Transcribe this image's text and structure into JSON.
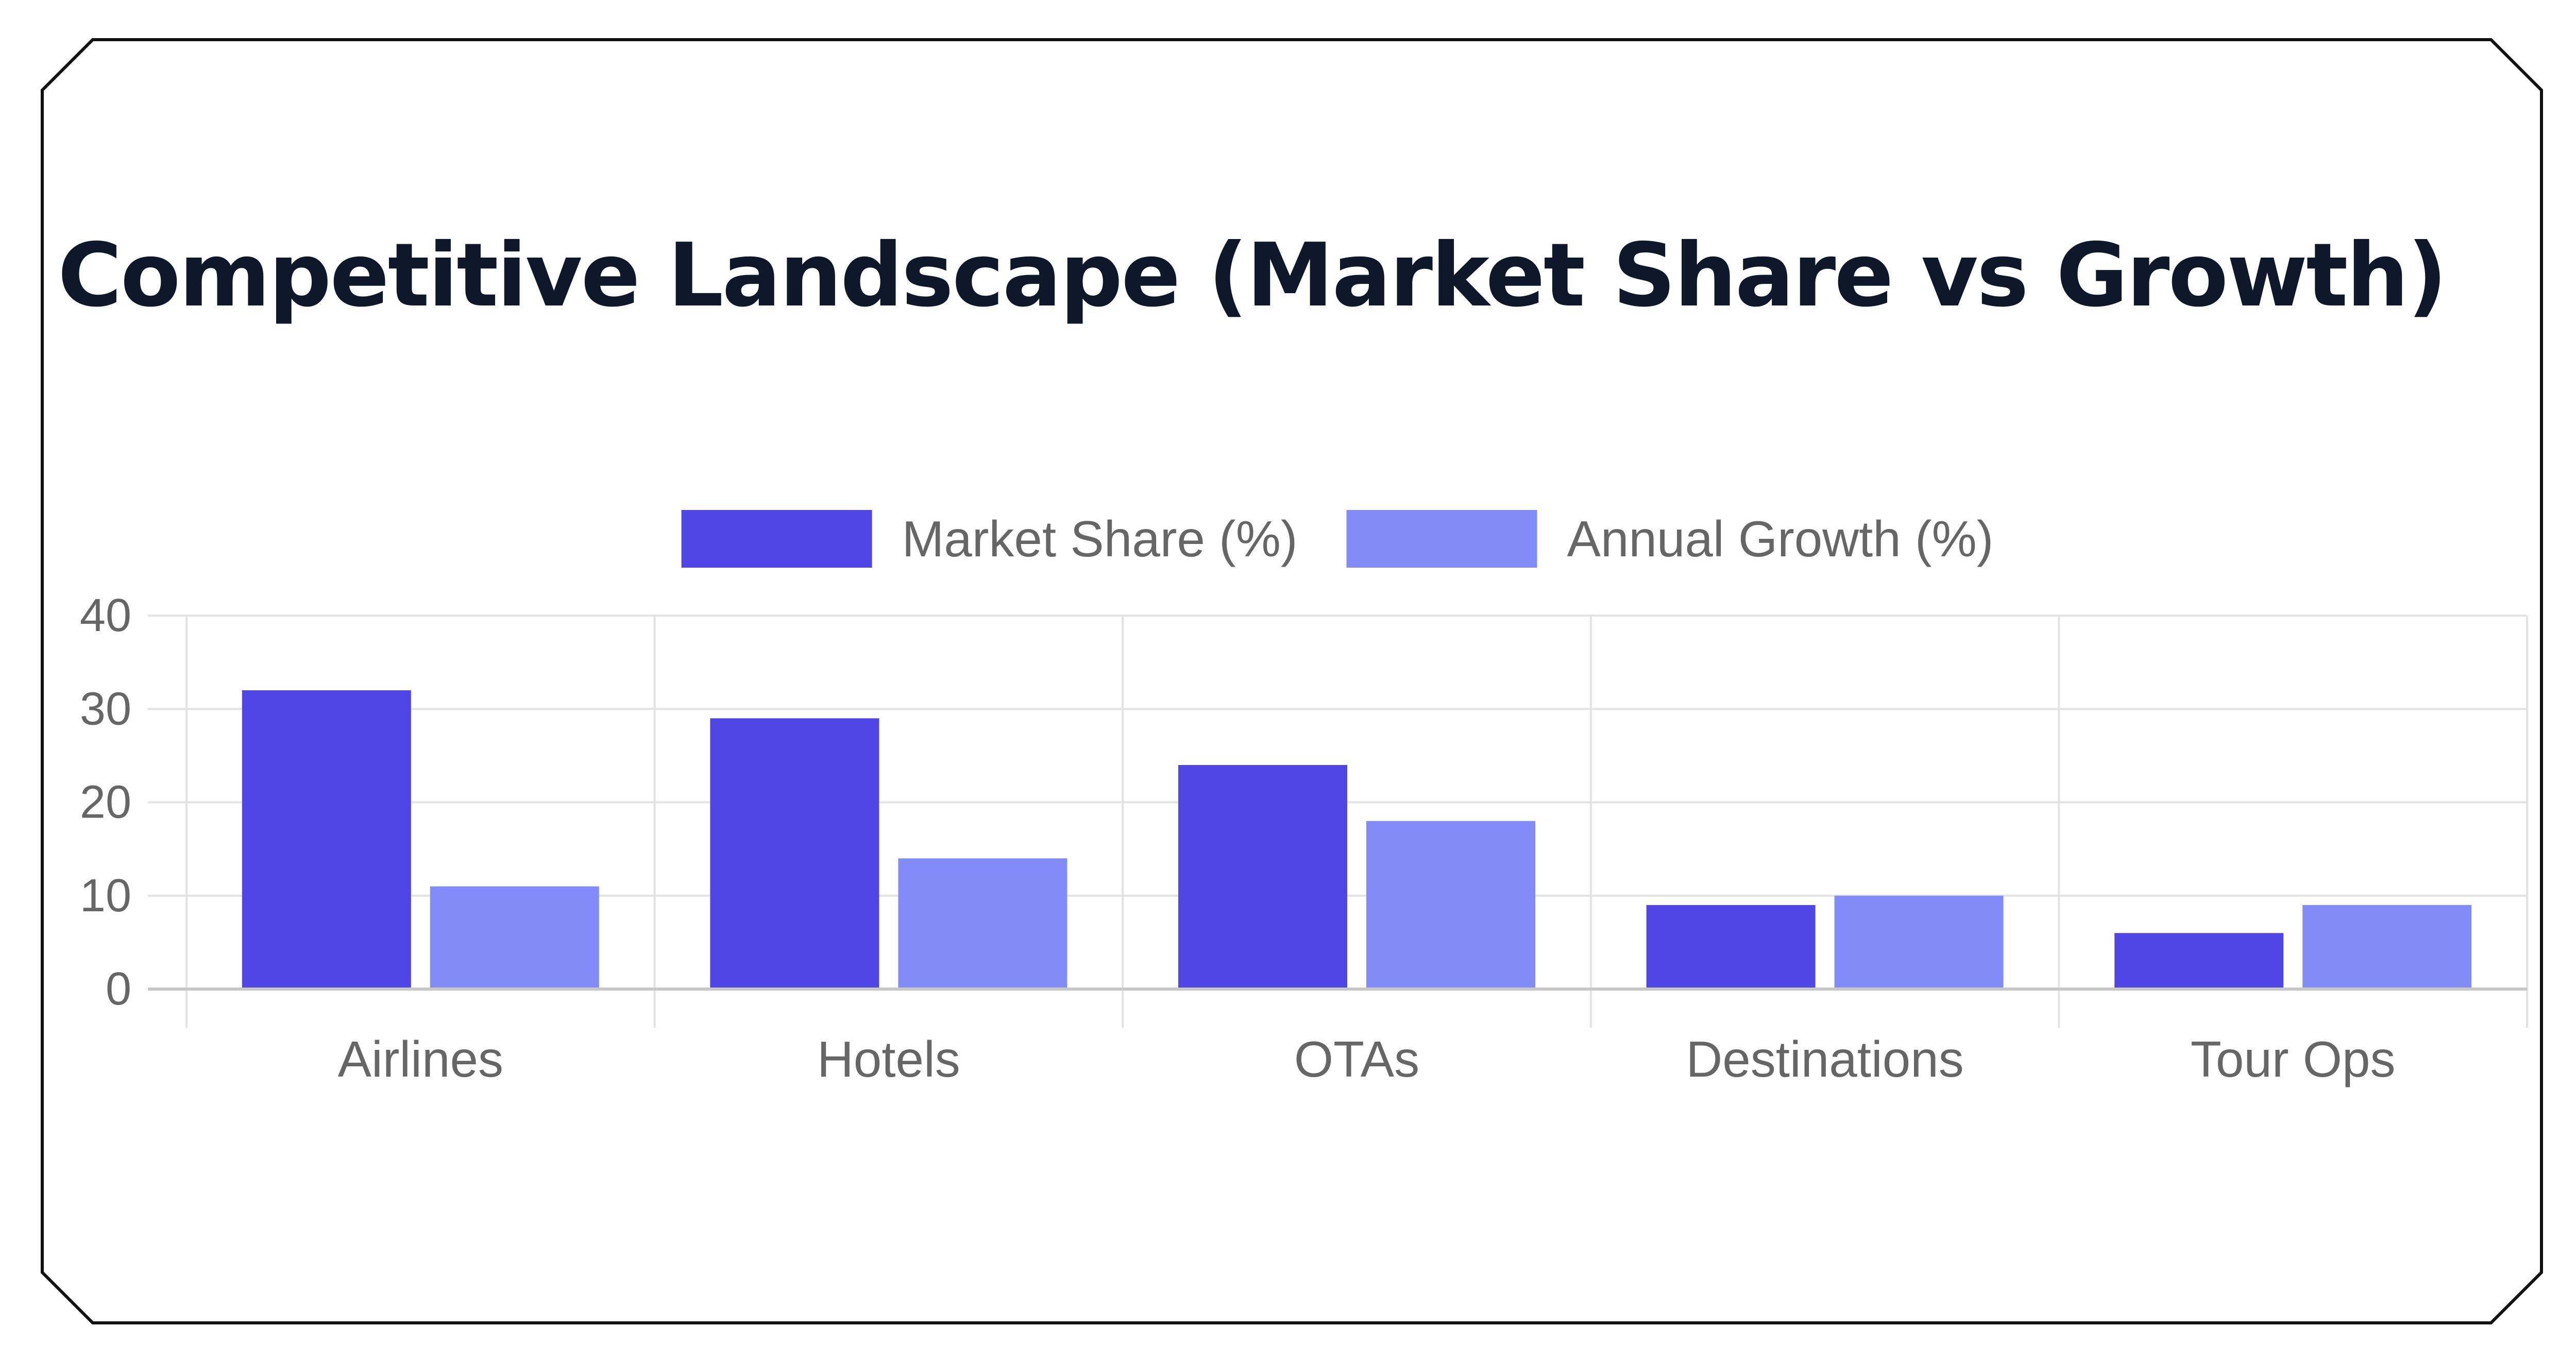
{
  "chart_data": {
    "type": "bar",
    "title": "Competitive Landscape (Market Share vs Growth)",
    "categories": [
      "Airlines",
      "Hotels",
      "OTAs",
      "Destinations",
      "Tour Ops"
    ],
    "series": [
      {
        "name": "Market Share (%)",
        "values": [
          32,
          29,
          24,
          9,
          6
        ],
        "color": "#4f46e5"
      },
      {
        "name": "Annual Growth (%)",
        "values": [
          11,
          14,
          18,
          10,
          9
        ],
        "color": "#818cf8"
      }
    ],
    "xlabel": "",
    "ylabel": "",
    "ylim": [
      0,
      40
    ],
    "yticks": [
      "0",
      "10",
      "20",
      "30",
      "40"
    ],
    "grid": true,
    "legend_position": "top"
  }
}
